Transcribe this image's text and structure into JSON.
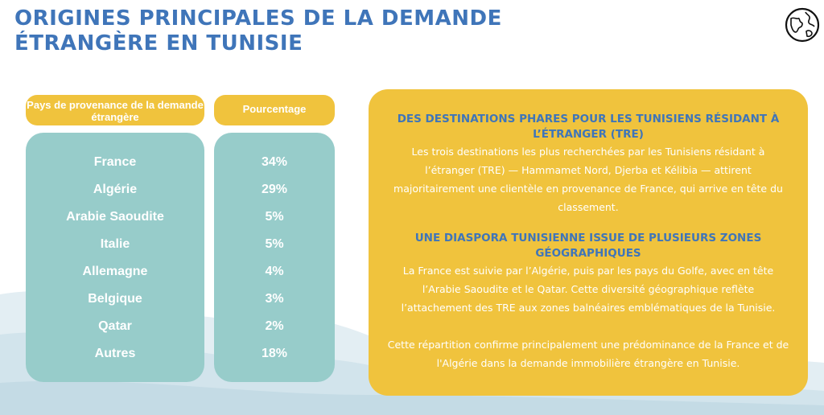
{
  "title": {
    "line1": "ORIGINES PRINCIPALES DE LA DEMANDE",
    "line2": "ÉTRANGÈRE EN TUNISIE"
  },
  "icon": "globe-icon",
  "colors": {
    "title_blue": "#3f75b9",
    "accent_yellow": "#f0c33d",
    "table_teal": "#97ccca"
  },
  "table": {
    "header_country": "Pays de provenance de la demande étrangère",
    "header_pct": "Pourcentage",
    "rows": [
      {
        "country": "France",
        "pct": "34%"
      },
      {
        "country": "Algérie",
        "pct": "29%"
      },
      {
        "country": "Arabie Saoudite",
        "pct": "5%"
      },
      {
        "country": "Italie",
        "pct": "5%"
      },
      {
        "country": "Allemagne",
        "pct": "4%"
      },
      {
        "country": "Belgique",
        "pct": "3%"
      },
      {
        "country": "Qatar",
        "pct": "2%"
      },
      {
        "country": "Autres",
        "pct": "18%"
      }
    ]
  },
  "card": {
    "heading1": "DES DESTINATIONS PHARES POUR LES TUNISIENS RÉSIDANT À L’ÉTRANGER (TRE)",
    "para1": "Les trois destinations les plus recherchées par les Tunisiens résidant à l’étranger (TRE) — Hammamet Nord, Djerba et Kélibia — attirent majoritairement une clientèle en provenance de France, qui arrive en tête du classement.",
    "heading2": "UNE DIASPORA TUNISIENNE ISSUE DE PLUSIEURS ZONES GÉOGRAPHIQUES",
    "para2": "La France est suivie par l’Algérie, puis par les pays du Golfe, avec en tête l’Arabie Saoudite et le Qatar. Cette diversité géographique reflète l’attachement des TRE aux zones balnéaires emblématiques de la Tunisie.",
    "para3": "Cette répartition confirme principalement une prédominance de la France et de l'Algérie dans la demande immobilière étrangère en Tunisie."
  }
}
